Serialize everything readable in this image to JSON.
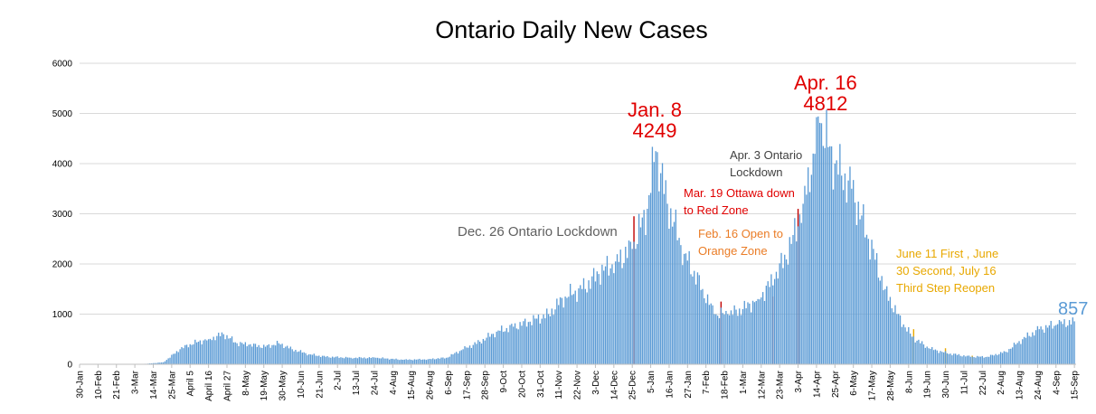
{
  "chart_data": {
    "type": "bar",
    "title": "Ontario Daily New Cases",
    "xlabel": "",
    "ylabel": "",
    "ylim": [
      0,
      6000
    ],
    "yticks": [
      0,
      1000,
      2000,
      3000,
      4000,
      5000,
      6000
    ],
    "grid": true,
    "legend": "none",
    "x_start": "2020-01-30",
    "x_end": "2021-09-16",
    "x_tick_labels": [
      {
        "date": "2020-01-30",
        "label": "30-Jan"
      },
      {
        "date": "2020-02-10",
        "label": "10-Feb"
      },
      {
        "date": "2020-02-21",
        "label": "21-Feb"
      },
      {
        "date": "2020-03-03",
        "label": "3-Mar"
      },
      {
        "date": "2020-03-14",
        "label": "14-Mar"
      },
      {
        "date": "2020-03-25",
        "label": "25-Mar"
      },
      {
        "date": "2020-04-05",
        "label": "April 5"
      },
      {
        "date": "2020-04-16",
        "label": "April 16"
      },
      {
        "date": "2020-04-27",
        "label": "April 27"
      },
      {
        "date": "2020-05-08",
        "label": "8-May"
      },
      {
        "date": "2020-05-19",
        "label": "19-May"
      },
      {
        "date": "2020-05-30",
        "label": "30-May"
      },
      {
        "date": "2020-06-10",
        "label": "10-Jun"
      },
      {
        "date": "2020-06-21",
        "label": "21-Jun"
      },
      {
        "date": "2020-07-02",
        "label": "2-Jul"
      },
      {
        "date": "2020-07-13",
        "label": "13-Jul"
      },
      {
        "date": "2020-07-24",
        "label": "24-Jul"
      },
      {
        "date": "2020-08-04",
        "label": "4-Aug"
      },
      {
        "date": "2020-08-15",
        "label": "15-Aug"
      },
      {
        "date": "2020-08-26",
        "label": "26-Aug"
      },
      {
        "date": "2020-09-06",
        "label": "6-Sep"
      },
      {
        "date": "2020-09-17",
        "label": "17-Sep"
      },
      {
        "date": "2020-09-28",
        "label": "28-Sep"
      },
      {
        "date": "2020-10-09",
        "label": "9-Oct"
      },
      {
        "date": "2020-10-20",
        "label": "20-Oct"
      },
      {
        "date": "2020-10-31",
        "label": "31-Oct"
      },
      {
        "date": "2020-11-11",
        "label": "11-Nov"
      },
      {
        "date": "2020-11-22",
        "label": "22-Nov"
      },
      {
        "date": "2020-12-03",
        "label": "3-Dec"
      },
      {
        "date": "2020-12-14",
        "label": "14-Dec"
      },
      {
        "date": "2020-12-25",
        "label": "25-Dec"
      },
      {
        "date": "2021-01-05",
        "label": "5-Jan"
      },
      {
        "date": "2021-01-16",
        "label": "16-Jan"
      },
      {
        "date": "2021-01-27",
        "label": "27-Jan"
      },
      {
        "date": "2021-02-07",
        "label": "7-Feb"
      },
      {
        "date": "2021-02-18",
        "label": "18-Feb"
      },
      {
        "date": "2021-03-01",
        "label": "1-Mar"
      },
      {
        "date": "2021-03-12",
        "label": "12-Mar"
      },
      {
        "date": "2021-03-23",
        "label": "23-Mar"
      },
      {
        "date": "2021-04-03",
        "label": "3-Apr"
      },
      {
        "date": "2021-04-14",
        "label": "14-Apr"
      },
      {
        "date": "2021-04-25",
        "label": "25-Apr"
      },
      {
        "date": "2021-05-06",
        "label": "6-May"
      },
      {
        "date": "2021-05-17",
        "label": "17-May"
      },
      {
        "date": "2021-05-28",
        "label": "28-May"
      },
      {
        "date": "2021-06-08",
        "label": "8-Jun"
      },
      {
        "date": "2021-06-19",
        "label": "19-Jun"
      },
      {
        "date": "2021-06-30",
        "label": "30-Jun"
      },
      {
        "date": "2021-07-11",
        "label": "11-Jul"
      },
      {
        "date": "2021-07-22",
        "label": "22-Jul"
      },
      {
        "date": "2021-08-02",
        "label": "2-Aug"
      },
      {
        "date": "2021-08-13",
        "label": "13-Aug"
      },
      {
        "date": "2021-08-24",
        "label": "24-Aug"
      },
      {
        "date": "2021-09-04",
        "label": "4-Sep"
      },
      {
        "date": "2021-09-15",
        "label": "15-Sep"
      }
    ],
    "series": [
      {
        "color": "#5b9bd5",
        "points": [
          [
            "2020-01-30",
            0
          ],
          [
            "2020-02-29",
            5
          ],
          [
            "2020-03-10",
            10
          ],
          [
            "2020-03-20",
            40
          ],
          [
            "2020-03-30",
            300
          ],
          [
            "2020-04-05",
            400
          ],
          [
            "2020-04-10",
            450
          ],
          [
            "2020-04-16",
            500
          ],
          [
            "2020-04-25",
            600
          ],
          [
            "2020-05-03",
            420
          ],
          [
            "2020-05-10",
            390
          ],
          [
            "2020-05-20",
            350
          ],
          [
            "2020-05-28",
            420
          ],
          [
            "2020-06-05",
            300
          ],
          [
            "2020-06-15",
            200
          ],
          [
            "2020-06-25",
            150
          ],
          [
            "2020-07-10",
            130
          ],
          [
            "2020-07-25",
            130
          ],
          [
            "2020-08-10",
            90
          ],
          [
            "2020-08-25",
            100
          ],
          [
            "2020-09-05",
            130
          ],
          [
            "2020-09-15",
            300
          ],
          [
            "2020-09-25",
            450
          ],
          [
            "2020-10-05",
            650
          ],
          [
            "2020-10-15",
            750
          ],
          [
            "2020-10-25",
            850
          ],
          [
            "2020-11-05",
            1000
          ],
          [
            "2020-11-15",
            1350
          ],
          [
            "2020-11-25",
            1500
          ],
          [
            "2020-12-05",
            1800
          ],
          [
            "2020-12-15",
            2050
          ],
          [
            "2020-12-25",
            2300
          ],
          [
            "2021-01-03",
            3100
          ],
          [
            "2021-01-08",
            4249
          ],
          [
            "2021-01-15",
            3200
          ],
          [
            "2021-01-25",
            2200
          ],
          [
            "2021-02-05",
            1500
          ],
          [
            "2021-02-12",
            1000
          ],
          [
            "2021-02-20",
            1000
          ],
          [
            "2021-03-01",
            1100
          ],
          [
            "2021-03-10",
            1300
          ],
          [
            "2021-03-20",
            1700
          ],
          [
            "2021-03-30",
            2400
          ],
          [
            "2021-04-06",
            3200
          ],
          [
            "2021-04-12",
            4200
          ],
          [
            "2021-04-16",
            4812
          ],
          [
            "2021-04-25",
            4000
          ],
          [
            "2021-05-05",
            3500
          ],
          [
            "2021-05-15",
            2500
          ],
          [
            "2021-05-25",
            1500
          ],
          [
            "2021-06-01",
            1000
          ],
          [
            "2021-06-10",
            550
          ],
          [
            "2021-06-20",
            320
          ],
          [
            "2021-07-01",
            220
          ],
          [
            "2021-07-15",
            150
          ],
          [
            "2021-07-25",
            150
          ],
          [
            "2021-08-05",
            250
          ],
          [
            "2021-08-15",
            500
          ],
          [
            "2021-08-25",
            700
          ],
          [
            "2021-09-05",
            800
          ],
          [
            "2021-09-15",
            857
          ]
        ]
      }
    ],
    "reference_lines": [
      {
        "date": "2020-12-26",
        "value": 2950,
        "color": "#c00000"
      },
      {
        "date": "2021-02-16",
        "value": 1250,
        "color": "#c00000"
      },
      {
        "date": "2021-03-19",
        "value": 1350,
        "color": "#c00000"
      },
      {
        "date": "2021-04-03",
        "value": 3100,
        "color": "#c00000"
      },
      {
        "date": "2021-06-11",
        "value": 700,
        "color": "#e8a800"
      },
      {
        "date": "2021-06-30",
        "value": 320,
        "color": "#e8a800"
      },
      {
        "date": "2021-07-16",
        "value": 170,
        "color": "#e8a800"
      }
    ],
    "annotations": {
      "jan8_date": "Jan. 8",
      "jan8_value": "4249",
      "apr16_date": "Apr. 16",
      "apr16_value": "4812",
      "dec26": "Dec. 26 Ontario Lockdown",
      "apr3_line1": "Apr. 3 Ontario",
      "apr3_line2": "Lockdown",
      "mar19_line1": "Mar. 19 Ottawa down",
      "mar19_line2": "to Red Zone",
      "feb16_line1": "Feb. 16 Open to",
      "feb16_line2": "Orange Zone",
      "june11_line1": "June 11 First , June",
      "june11_line2": "30 Second, July 16",
      "june11_line3": "Third Step Reopen",
      "last_value": "857"
    }
  }
}
